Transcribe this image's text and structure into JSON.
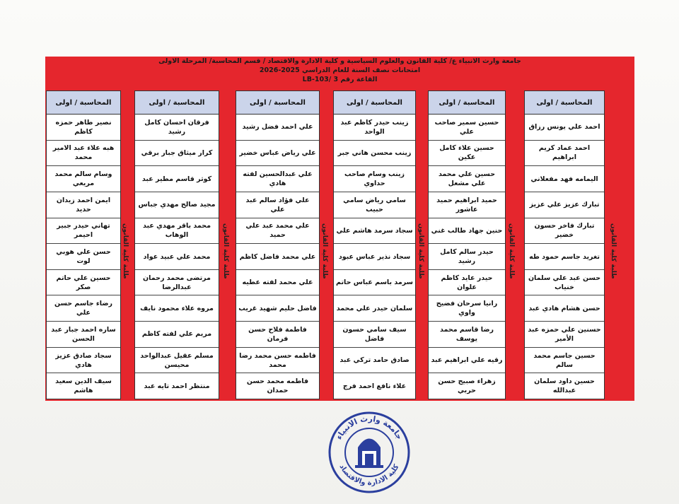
{
  "header": {
    "line1": "جامعة وارث الانبياء ع/ كلية القانون والعلوم السياسية و كلية الادارة والاقتصاد / قسم المحاسبة/ المرحلة الاولى",
    "line2": "امتحانات نصف السنة للعام الدراسي 2025-2026",
    "line3": "القاعة رقم 3 /LB-103"
  },
  "colors": {
    "red": "#e5262d",
    "header_cell": "#cbd4ea",
    "logo_blue": "#2b3f9e"
  },
  "columns": [
    {
      "title": "المحاسبة / اولى",
      "side_label": "طلبة كلية القانون",
      "names": [
        "احمد علي يونس رزاق",
        "احمد عماد كريم ابراهيم",
        "اليمامه فهد مفعلاني",
        "تبارك عزيز علي عزيز",
        "تبارك فاخر حسون خضير",
        "تغريد جاسم حمود طه",
        "حسن عبد علي سلمان خنياب",
        "حسن هشام هادي عبد",
        "حسنين علي حمزه عبد الأمير",
        "حسين جاسم محمد سالم",
        "حسين داود سلمان عبدالله"
      ]
    },
    {
      "title": "المحاسبة / اولى",
      "side_label": "طلبة كلية القانون",
      "names": [
        "حسين سمير صاحب علي",
        "حسين علاء كامل عكين",
        "حسين علي محمد علي مشعل",
        "حميد ابراهيم حميد عاشور",
        "حنين جهاد طالب غني",
        "حيدر سالم كامل رشيد",
        "حيدر عايد كاظم علوان",
        "رانيا سرحان فضيح واوي",
        "رضا قاسم محمد يوسف",
        "رقيه علي ابراهيم عبد",
        "زهراء صبيح حسن حربي"
      ]
    },
    {
      "title": "المحاسبة / اولى",
      "side_label": "طلبة كلية القانون",
      "names": [
        "زينب حيدر كاظم عبد الواحد",
        "زينب محسن هاني جبر",
        "زينب وسام صاحب حداوي",
        "سامي رياض سامي حبيب",
        "سجاد سرمد هاشم علي",
        "سجاد نذير عباس عبود",
        "سرمد باسم عباس حاتم",
        "سلمان حيدر علي محمد",
        "سيف سامي حسون فاضل",
        "صادق حامد تركي عبد",
        "علاء نافع احمد فرج"
      ]
    },
    {
      "title": "المحاسبة / اولى",
      "side_label": "طلبة كلية القانون",
      "names": [
        "علي احمد فضل رشيد",
        "علي رياض عباس خضير",
        "علي عبدالحسين لفته هادي",
        "علي فؤاد سالم عبد علي",
        "علي محمد عبد علي حميد",
        "علي محمد فاضل كاظم",
        "علي محمد لفته عطيه",
        "فاضل حليم شهيد غريب",
        "فاطمة فلاح حسن فرمان",
        "فاطمه حسن محمد رضا محمد",
        "فاطمه محمد حسن حمدان"
      ]
    },
    {
      "title": "المحاسبة / اولى",
      "side_label": "طلبة كلية القانون",
      "names": [
        "فرقان احسان كامل رشيد",
        "كرار ميثاق جبار برقي",
        "كوثر قاسم مطير عبد",
        "مجيد صالح مهدي جباس",
        "محمد باقر مهدي عبد الوهاب",
        "محمد علي عبيد عواد",
        "مرتضى محمد رحمان عبدالرضا",
        "مروه علاء محمود نايف",
        "مريم علي لفته كاظم",
        "مسلم عقيل عبدالواحد محيسن",
        "منتظر احمد تايه عبد"
      ]
    },
    {
      "title": "المحاسبة / اولى",
      "side_label": "طلبة كلية القانون",
      "names": [
        "نصير طاهر حمزه كاظم",
        "هبه علاء عبد الامير محمد",
        "وسام سالم محمد مريعي",
        "ايمن احمد زيدان حديد",
        "تهاني حيدر جبير احيمر",
        "حسن علي هوبي لوت",
        "حسين علي حاتم صكر",
        "رضاء جاسم حسن علي",
        "ساره احمد جبار عبد الحسن",
        "سجاد صادق عزيز هادي",
        "سيف الدين سعيد هاشم"
      ]
    }
  ],
  "logo": {
    "icon": "university-seal",
    "text_top": "جامعة وارث الانبياء",
    "text_bottom": "كلية الادارة والاقتصاد"
  }
}
